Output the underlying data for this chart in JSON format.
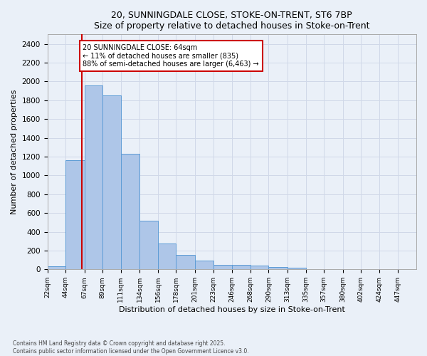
{
  "title1": "20, SUNNINGDALE CLOSE, STOKE-ON-TRENT, ST6 7BP",
  "title2": "Size of property relative to detached houses in Stoke-on-Trent",
  "xlabel": "Distribution of detached houses by size in Stoke-on-Trent",
  "ylabel": "Number of detached properties",
  "footnote1": "Contains HM Land Registry data © Crown copyright and database right 2025.",
  "footnote2": "Contains public sector information licensed under the Open Government Licence v3.0.",
  "bar_edges": [
    22,
    44,
    67,
    89,
    111,
    134,
    156,
    178,
    201,
    223,
    246,
    268,
    290,
    313,
    335,
    357,
    380,
    402,
    424,
    447,
    469
  ],
  "bar_values": [
    30,
    1160,
    1960,
    1850,
    1230,
    515,
    275,
    155,
    90,
    50,
    48,
    37,
    25,
    20,
    5,
    5,
    5,
    5,
    5,
    5
  ],
  "bar_color": "#aec6e8",
  "bar_edge_color": "#5b9bd5",
  "grid_color": "#d0d8e8",
  "bg_color": "#eaf0f8",
  "property_size": 64,
  "vline_color": "#cc0000",
  "annotation_text": "20 SUNNINGDALE CLOSE: 64sqm\n← 11% of detached houses are smaller (835)\n88% of semi-detached houses are larger (6,463) →",
  "annotation_box_color": "#ffffff",
  "annotation_border_color": "#cc0000",
  "ylim": [
    0,
    2500
  ],
  "yticks": [
    0,
    200,
    400,
    600,
    800,
    1000,
    1200,
    1400,
    1600,
    1800,
    2000,
    2200,
    2400
  ]
}
